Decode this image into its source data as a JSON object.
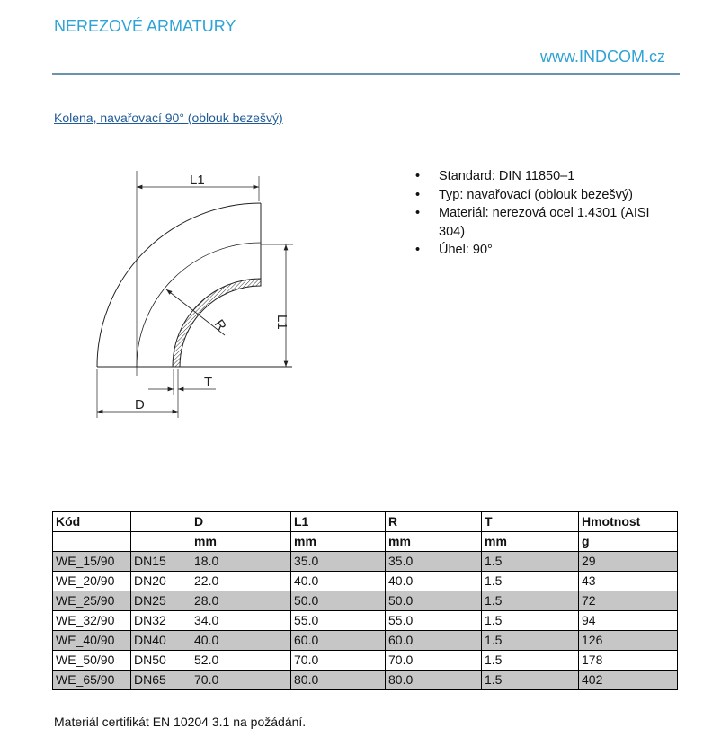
{
  "header": {
    "title": "NEREZOVÉ ARMATURY",
    "website": "www.INDCOM.cz"
  },
  "section_title": "Kolena, navařovací 90° (oblouk bezešvý)",
  "specs": [
    "Standard: DIN 11850–1",
    "Typ: navařovací (oblouk bezešvý)",
    "Materiál: nerezová ocel 1.4301 (AISI 304)",
    "Úhel: 90°"
  ],
  "diagram": {
    "labels": {
      "l1_top": "L1",
      "l1_side": "L1",
      "r": "R",
      "t": "T",
      "d": "D"
    }
  },
  "table": {
    "headers": [
      "Kód",
      "",
      "D",
      "L1",
      "R",
      "T",
      "Hmotnost"
    ],
    "units": [
      "",
      "",
      "mm",
      "mm",
      "mm",
      "mm",
      "g"
    ],
    "rows": [
      [
        "WE_15/90",
        "DN15",
        "18.0",
        "35.0",
        "35.0",
        "1.5",
        "29"
      ],
      [
        "WE_20/90",
        "DN20",
        "22.0",
        "40.0",
        "40.0",
        "1.5",
        "43"
      ],
      [
        "WE_25/90",
        "DN25",
        "28.0",
        "50.0",
        "50.0",
        "1.5",
        "72"
      ],
      [
        "WE_32/90",
        "DN32",
        "34.0",
        "55.0",
        "55.0",
        "1.5",
        "94"
      ],
      [
        "WE_40/90",
        "DN40",
        "40.0",
        "60.0",
        "60.0",
        "1.5",
        "126"
      ],
      [
        "WE_50/90",
        "DN50",
        "52.0",
        "70.0",
        "70.0",
        "1.5",
        "178"
      ],
      [
        "WE_65/90",
        "DN65",
        "70.0",
        "80.0",
        "80.0",
        "1.5",
        "402"
      ]
    ]
  },
  "footer_note": "Materiál certifikát EN 10204 3.1 na požádání."
}
